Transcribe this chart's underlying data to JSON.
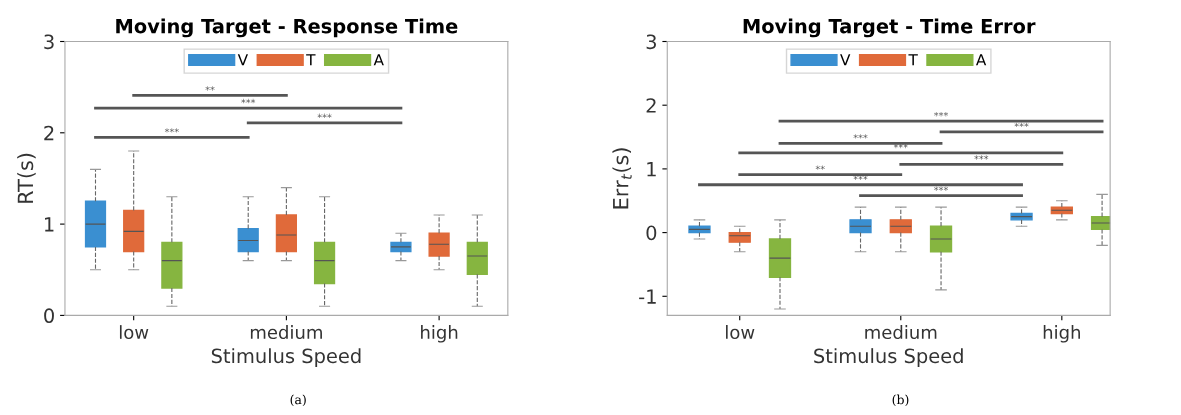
{
  "chart_data": [
    {
      "type": "box",
      "title": "Moving Target - Response Time",
      "xlabel": "Stimulus Speed",
      "ylabel": "RT(s)",
      "categories": [
        "low",
        "medium",
        "high"
      ],
      "ylim": [
        0,
        3
      ],
      "yticks": [
        0,
        1,
        2,
        3
      ],
      "legend": "top",
      "grid": false,
      "series": [
        {
          "name": "V",
          "color": "#3a8fd1",
          "boxes": [
            {
              "low": 0.5,
              "q1": 0.75,
              "median": 1.0,
              "q3": 1.25,
              "high": 1.6
            },
            {
              "low": 0.6,
              "q1": 0.7,
              "median": 0.82,
              "q3": 0.95,
              "high": 1.3
            },
            {
              "low": 0.6,
              "q1": 0.7,
              "median": 0.75,
              "q3": 0.8,
              "high": 0.9
            }
          ]
        },
        {
          "name": "T",
          "color": "#e06a3a",
          "boxes": [
            {
              "low": 0.5,
              "q1": 0.7,
              "median": 0.92,
              "q3": 1.15,
              "high": 1.8
            },
            {
              "low": 0.6,
              "q1": 0.7,
              "median": 0.88,
              "q3": 1.1,
              "high": 1.4
            },
            {
              "low": 0.5,
              "q1": 0.65,
              "median": 0.78,
              "q3": 0.9,
              "high": 1.1
            }
          ]
        },
        {
          "name": "A",
          "color": "#86b540",
          "boxes": [
            {
              "low": 0.1,
              "q1": 0.3,
              "median": 0.6,
              "q3": 0.8,
              "high": 1.3
            },
            {
              "low": 0.1,
              "q1": 0.35,
              "median": 0.6,
              "q3": 0.8,
              "high": 1.3
            },
            {
              "low": 0.1,
              "q1": 0.45,
              "median": 0.65,
              "q3": 0.8,
              "high": 1.1
            }
          ]
        }
      ],
      "annotations": [
        "**",
        "***",
        "***",
        "***",
        "(a)"
      ]
    },
    {
      "type": "box",
      "title": "Moving Target - Time Error",
      "xlabel": "Stimulus Speed",
      "ylabel": "Err$_{t}$(s)",
      "categories": [
        "low",
        "medium",
        "high"
      ],
      "ylim": [
        -1.3,
        3
      ],
      "yticks": [
        -1,
        0,
        1,
        2,
        3
      ],
      "legend": "top",
      "grid": false,
      "series": [
        {
          "name": "V",
          "color": "#3a8fd1",
          "boxes": [
            {
              "low": -0.1,
              "q1": 0.0,
              "median": 0.05,
              "q3": 0.1,
              "high": 0.2
            },
            {
              "low": -0.3,
              "q1": 0.0,
              "median": 0.1,
              "q3": 0.2,
              "high": 0.4
            },
            {
              "low": 0.1,
              "q1": 0.2,
              "median": 0.25,
              "q3": 0.3,
              "high": 0.4
            }
          ]
        },
        {
          "name": "T",
          "color": "#e06a3a",
          "boxes": [
            {
              "low": -0.3,
              "q1": -0.15,
              "median": -0.05,
              "q3": 0.0,
              "high": 0.1
            },
            {
              "low": -0.3,
              "q1": 0.0,
              "median": 0.1,
              "q3": 0.2,
              "high": 0.4
            },
            {
              "low": 0.2,
              "q1": 0.3,
              "median": 0.35,
              "q3": 0.4,
              "high": 0.5
            }
          ]
        },
        {
          "name": "A",
          "color": "#86b540",
          "boxes": [
            {
              "low": -1.2,
              "q1": -0.7,
              "median": -0.4,
              "q3": -0.1,
              "high": 0.2
            },
            {
              "low": -0.9,
              "q1": -0.3,
              "median": -0.1,
              "q3": 0.1,
              "high": 0.4
            },
            {
              "low": -0.2,
              "q1": 0.05,
              "median": 0.15,
              "q3": 0.25,
              "high": 0.6
            }
          ]
        }
      ],
      "annotations": [
        "***",
        "***",
        "***",
        "***",
        "***",
        "**",
        "***",
        "***",
        "(b)"
      ]
    }
  ]
}
